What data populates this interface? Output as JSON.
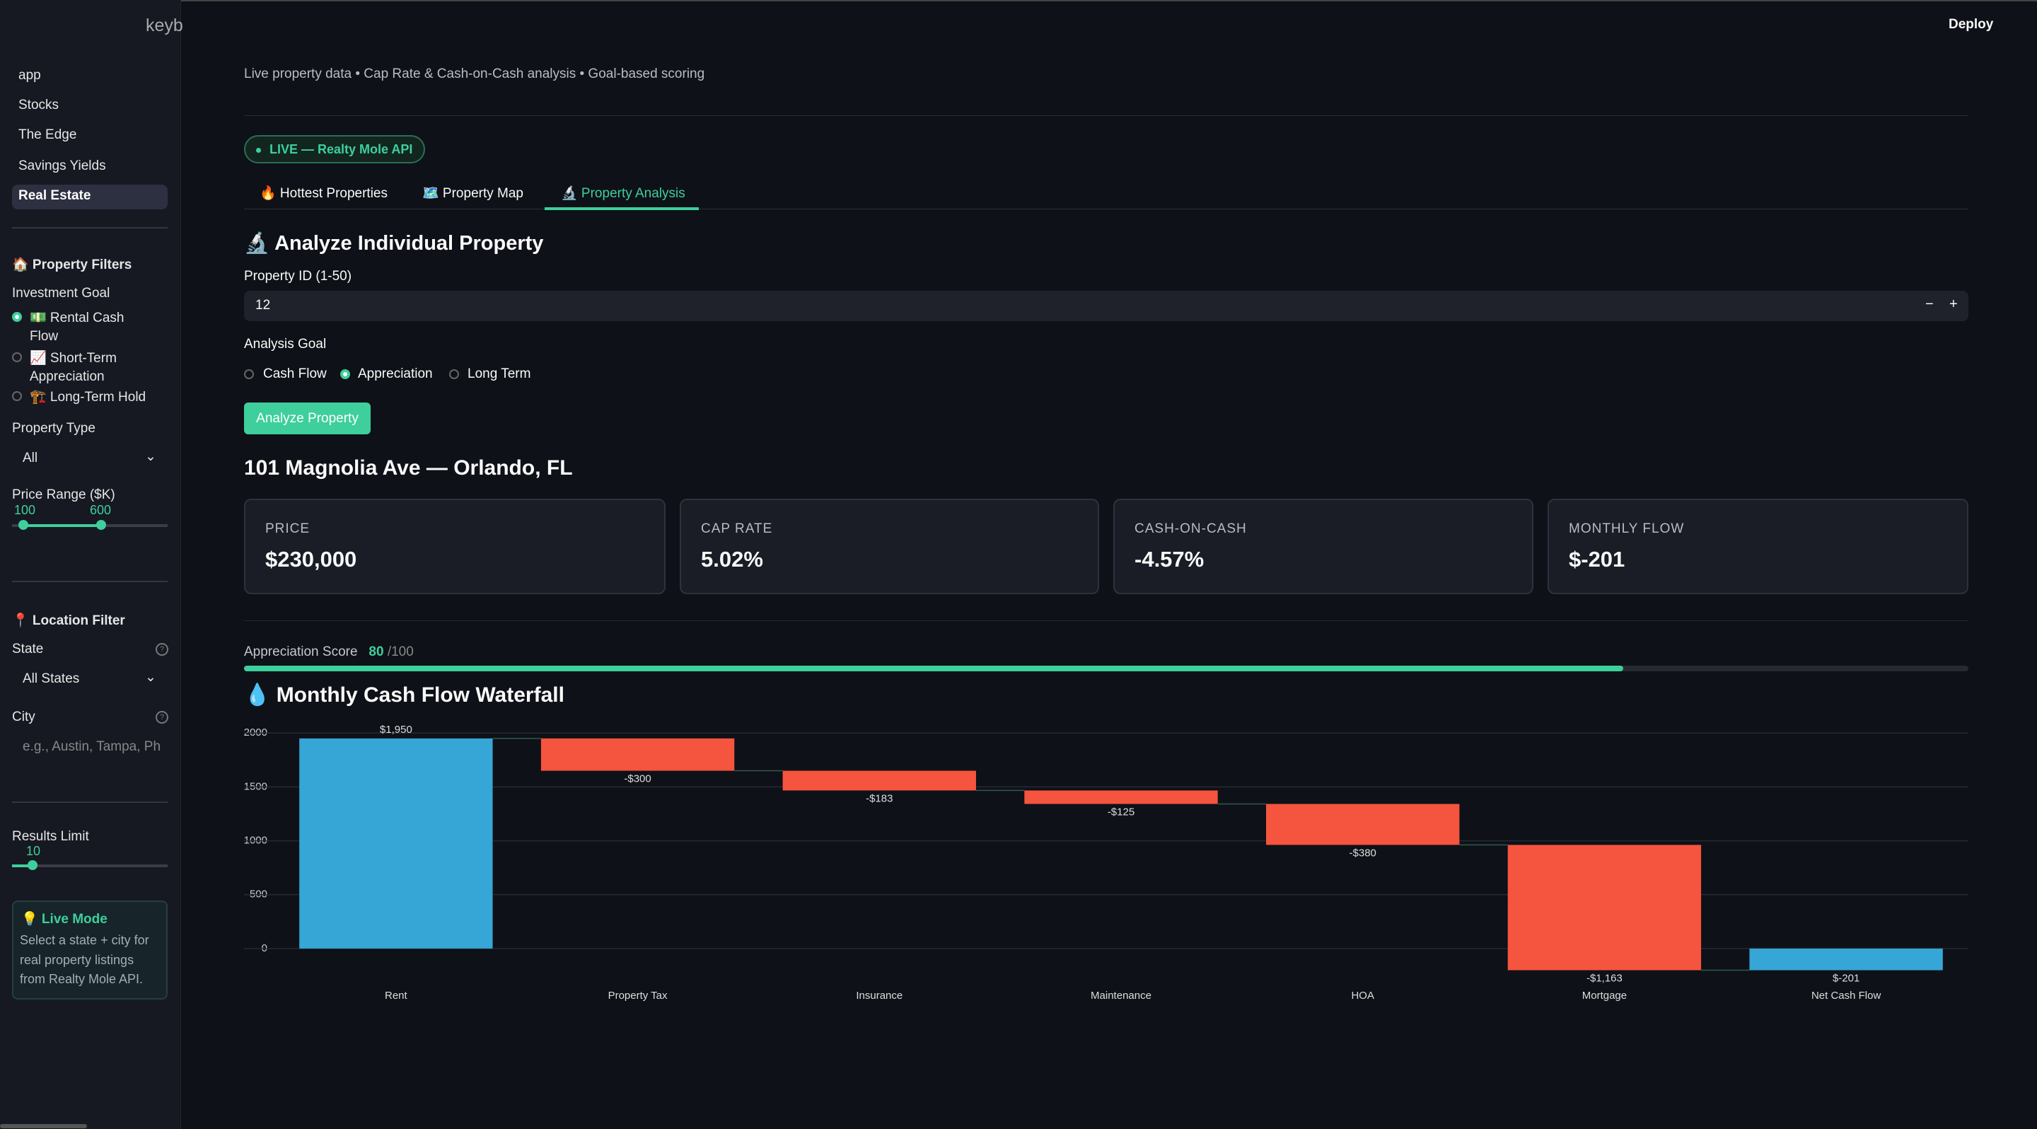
{
  "header": {
    "brand": "keyb",
    "deploy": "Deploy",
    "subtitle": "Live property data • Cap Rate & Cash-on-Cash analysis • Goal-based scoring"
  },
  "sidebar": {
    "nav": [
      "app",
      "Stocks",
      "The Edge",
      "Savings Yields",
      "Real Estate"
    ],
    "filters_title": "🏠 Property Filters",
    "goal_label": "Investment Goal",
    "goals": [
      [
        "💵 Rental Cash",
        "Flow"
      ],
      [
        "📈 Short-Term",
        "Appreciation"
      ],
      [
        "🏗️ Long-Term Hold"
      ]
    ],
    "type_label": "Property Type",
    "type_value": "All",
    "price_label": "Price Range ($K)",
    "price_min": 100,
    "price_max": 600,
    "location_title": "📍 Location Filter",
    "state_label": "State",
    "state_value": "All States",
    "city_label": "City",
    "city_placeholder": "e.g., Austin, Tampa, Ph",
    "results_label": "Results Limit",
    "results_value": 10,
    "info_title": "💡 Live Mode",
    "info_text": [
      "Select a state + city for",
      "real property listings",
      "from Realty Mole API."
    ]
  },
  "main": {
    "badge": "LIVE — Realty Mole API",
    "tabs": [
      "🔥 Hottest Properties",
      "🗺️ Property Map",
      "🔬 Property Analysis"
    ],
    "section_title": "🔬 Analyze Individual Property",
    "id_label": "Property ID (1-50)",
    "property_id": 12,
    "stepper": [
      "−",
      "+"
    ],
    "goal_label": "Analysis Goal",
    "goal_options": [
      "Cash Flow",
      "Appreciation",
      "Long Term"
    ],
    "button": "Analyze Property",
    "property_title": "101 Magnolia Ave — Orlando, FL",
    "metrics": [
      {
        "label": "PRICE",
        "value": "$230,000"
      },
      {
        "label": "CAP RATE",
        "value": "5.02%"
      },
      {
        "label": "CASH-ON-CASH",
        "value": "-4.57%"
      },
      {
        "label": "MONTHLY FLOW",
        "value": "$-201"
      }
    ],
    "score_label": "Appreciation Score",
    "score": {
      "value": 80,
      "max": {
        "value": 100,
        "label": "/100"
      }
    }
  },
  "chart_data": {
    "type": "waterfall",
    "title": "💧 Monthly Cash Flow Waterfall",
    "categories": [
      "Rent",
      "Property Tax",
      "Insurance",
      "Maintenance",
      "HOA",
      "Mortgage",
      "Net Cash Flow"
    ],
    "values": [
      1950,
      -300,
      -183,
      -125,
      -380,
      -1163,
      -201
    ],
    "value_labels": [
      "$1,950",
      "-$300",
      "-$183",
      "-$125",
      "-$380",
      "-$1,163",
      "$-201"
    ],
    "measures": [
      "relative",
      "relative",
      "relative",
      "relative",
      "relative",
      "relative",
      "total"
    ],
    "colors": {
      "increase": "#35a6d5",
      "decrease": "#f5543e",
      "total": "#35a6d5"
    },
    "ylim": [
      -250,
      2100
    ],
    "yticks": [
      0,
      500,
      1000,
      1500,
      2000
    ],
    "grid": true
  }
}
